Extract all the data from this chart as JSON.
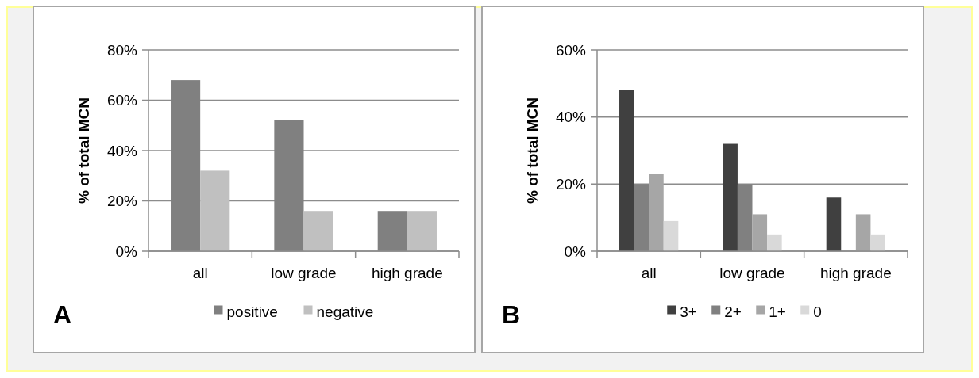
{
  "chart_data": [
    {
      "type": "bar",
      "categories": [
        "all",
        "low grade",
        "high grade"
      ],
      "ylabel": "% of total MCN",
      "series": [
        {
          "name": "positive",
          "color": "#808080",
          "values": [
            68,
            52,
            16
          ]
        },
        {
          "name": "negative",
          "color": "#c0c0c0",
          "values": [
            32,
            16,
            16
          ]
        }
      ],
      "ylim": [
        0,
        80
      ],
      "yticks": [
        {
          "value": 0,
          "label": "0%"
        },
        {
          "value": 20,
          "label": "20%"
        },
        {
          "value": 40,
          "label": "40%"
        },
        {
          "value": 60,
          "label": "60%"
        },
        {
          "value": 80,
          "label": "80%"
        }
      ],
      "grid": "y",
      "legend": "bottom",
      "annotations": [
        "A"
      ]
    },
    {
      "type": "bar",
      "categories": [
        "all",
        "low grade",
        "high grade"
      ],
      "ylabel": "% of total MCN",
      "series": [
        {
          "name": "3+",
          "color": "#404040",
          "values": [
            48,
            32,
            16
          ]
        },
        {
          "name": "2+",
          "color": "#808080",
          "values": [
            20,
            20,
            0
          ]
        },
        {
          "name": "1+",
          "color": "#a6a6a6",
          "values": [
            23,
            11,
            11
          ]
        },
        {
          "name": "0",
          "color": "#d9d9d9",
          "values": [
            9,
            5,
            5
          ]
        }
      ],
      "ylim": [
        0,
        60
      ],
      "yticks": [
        {
          "value": 0,
          "label": "0%"
        },
        {
          "value": 20,
          "label": "20%"
        },
        {
          "value": 40,
          "label": "40%"
        },
        {
          "value": 60,
          "label": "60%"
        }
      ],
      "grid": "y",
      "legend": "bottom",
      "annotations": [
        "B"
      ]
    }
  ]
}
